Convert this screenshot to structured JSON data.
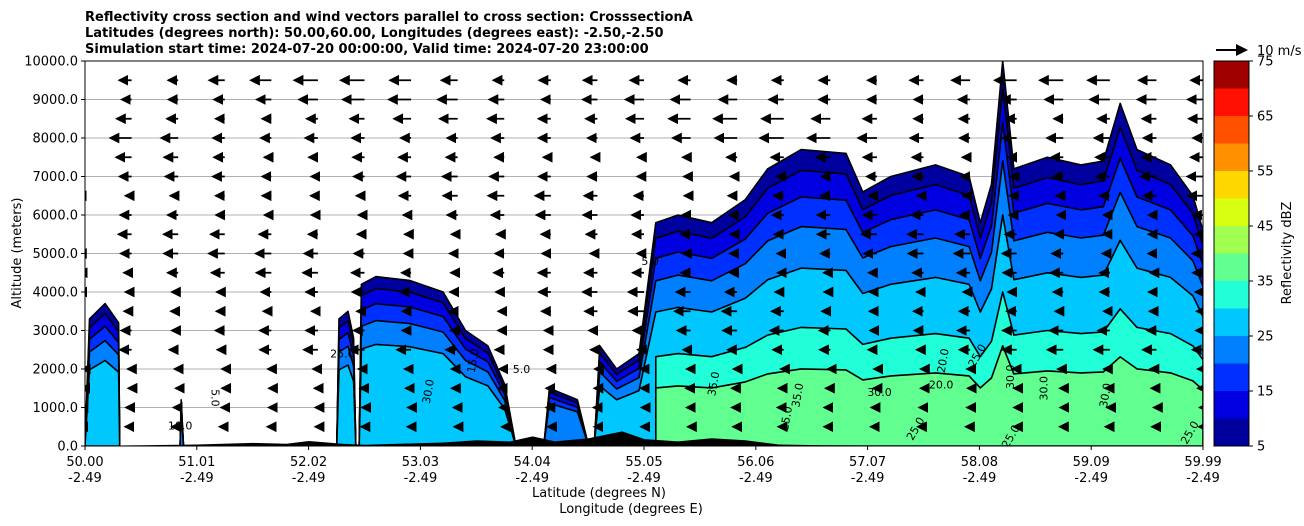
{
  "chart_data": {
    "type": "heatmap",
    "title_lines": [
      "Reflectivity cross section and wind vectors parallel to cross section: CrosssectionA",
      "Latitudes (degrees north): 50.00,60.00, Longitudes (degrees east): -2.50,-2.50",
      "Simulation start time: 2024-07-20 00:00:00, Valid time: 2024-07-20 23:00:00"
    ],
    "ylabel": "Altitude (meters)",
    "xlabel": "Latitude (degrees N)",
    "xlabel2": "Longitude (degrees E)",
    "ylim": [
      0,
      10000
    ],
    "y_ticks": [
      "0.0",
      "1000.0",
      "2000.0",
      "3000.0",
      "4000.0",
      "5000.0",
      "6000.0",
      "7000.0",
      "8000.0",
      "9000.0",
      "10000.0"
    ],
    "x_ticks": [
      {
        "lat": "50.00",
        "lon": "-2.49"
      },
      {
        "lat": "51.01",
        "lon": "-2.49"
      },
      {
        "lat": "52.02",
        "lon": "-2.49"
      },
      {
        "lat": "53.03",
        "lon": "-2.49"
      },
      {
        "lat": "54.04",
        "lon": "-2.49"
      },
      {
        "lat": "55.05",
        "lon": "-2.49"
      },
      {
        "lat": "56.06",
        "lon": "-2.49"
      },
      {
        "lat": "57.07",
        "lon": "-2.49"
      },
      {
        "lat": "58.08",
        "lon": "-2.49"
      },
      {
        "lat": "59.09",
        "lon": "-2.49"
      },
      {
        "lat": "59.99",
        "lon": "-2.49"
      }
    ],
    "grid": "horizontal",
    "colorbar": {
      "label": "Reflectivity dBZ",
      "levels": [
        5,
        10,
        15,
        20,
        25,
        30,
        35,
        40,
        45,
        50,
        55,
        60,
        65,
        70,
        75
      ],
      "tick_labels": [
        "5",
        "15",
        "25",
        "35",
        "45",
        "55",
        "65",
        "75"
      ],
      "colors": [
        "#00009f",
        "#0000e0",
        "#0030ff",
        "#0080ff",
        "#00c8ff",
        "#20ffd8",
        "#60ff90",
        "#a0ff50",
        "#d8ff10",
        "#ffd800",
        "#ff9000",
        "#ff5000",
        "#ff1000",
        "#a00000"
      ]
    },
    "quiver_key": "10 m/s",
    "contour_labels": [
      "5.0",
      "10.0",
      "15.0",
      "20.0",
      "25.0",
      "30.0",
      "35.0"
    ],
    "echo_tops_m": [
      [
        50.0,
        0
      ],
      [
        50.04,
        3300
      ],
      [
        50.18,
        3700
      ],
      [
        50.3,
        3200
      ],
      [
        50.31,
        0
      ],
      [
        50.85,
        0
      ],
      [
        50.86,
        1200
      ],
      [
        50.88,
        0
      ],
      [
        52.25,
        0
      ],
      [
        52.27,
        3300
      ],
      [
        52.35,
        3500
      ],
      [
        52.4,
        2800
      ],
      [
        52.42,
        0
      ],
      [
        52.45,
        0
      ],
      [
        52.47,
        4200
      ],
      [
        52.6,
        4400
      ],
      [
        52.9,
        4300
      ],
      [
        53.2,
        4000
      ],
      [
        53.4,
        3000
      ],
      [
        53.6,
        2600
      ],
      [
        53.75,
        1600
      ],
      [
        53.85,
        0
      ],
      [
        54.1,
        0
      ],
      [
        54.15,
        1500
      ],
      [
        54.4,
        1200
      ],
      [
        54.5,
        0
      ],
      [
        54.55,
        0
      ],
      [
        54.6,
        2600
      ],
      [
        54.75,
        2000
      ],
      [
        54.95,
        2400
      ],
      [
        55.1,
        5800
      ],
      [
        55.3,
        6000
      ],
      [
        55.6,
        5800
      ],
      [
        55.9,
        6400
      ],
      [
        56.1,
        7200
      ],
      [
        56.4,
        7700
      ],
      [
        56.8,
        7600
      ],
      [
        56.95,
        6600
      ],
      [
        57.2,
        7000
      ],
      [
        57.6,
        7300
      ],
      [
        57.9,
        7000
      ],
      [
        58.0,
        5800
      ],
      [
        58.1,
        6800
      ],
      [
        58.2,
        10000
      ],
      [
        58.3,
        7200
      ],
      [
        58.6,
        7500
      ],
      [
        58.9,
        7300
      ],
      [
        59.1,
        7400
      ],
      [
        59.25,
        8900
      ],
      [
        59.4,
        7700
      ],
      [
        59.7,
        7300
      ],
      [
        59.9,
        6500
      ],
      [
        59.99,
        5600
      ]
    ]
  }
}
